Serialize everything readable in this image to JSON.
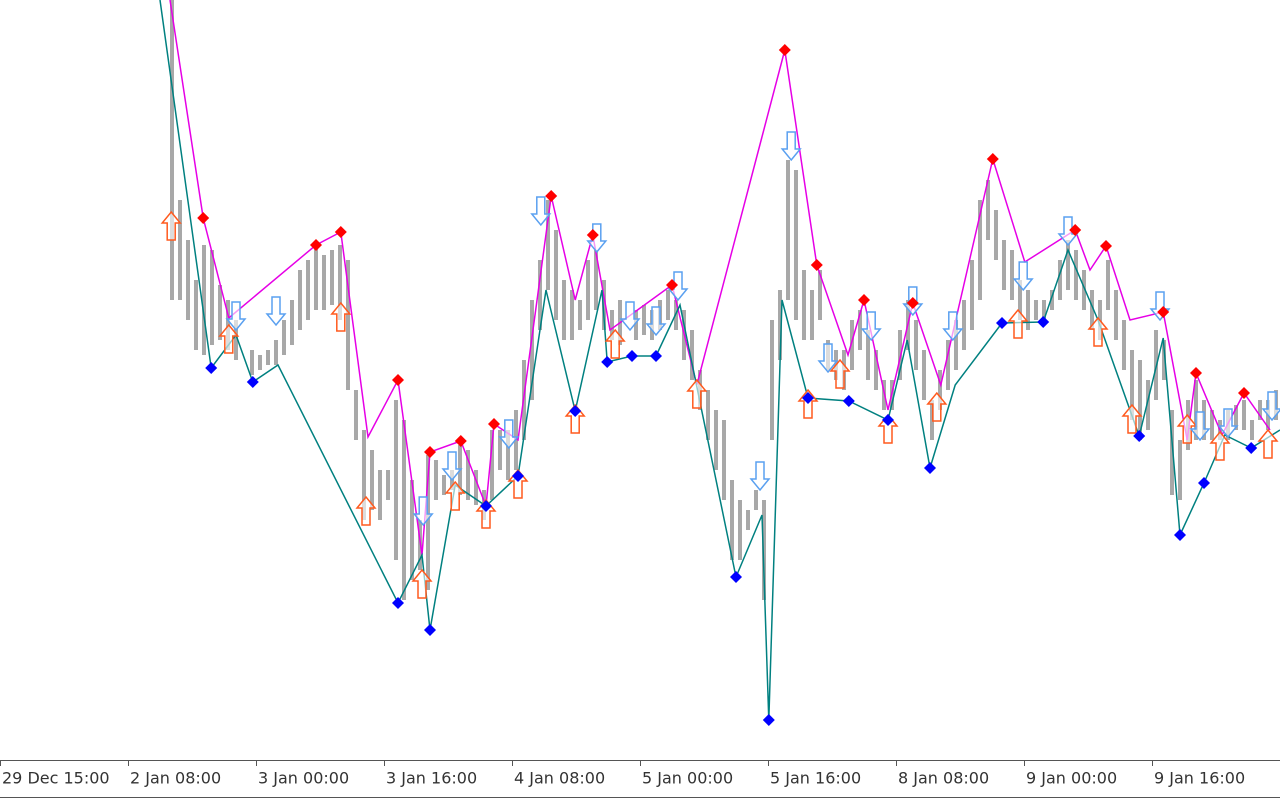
{
  "chart_data": {
    "type": "candlestick",
    "xlim": [
      0,
      160
    ],
    "ylim": [
      0,
      760
    ],
    "xticks": [
      {
        "value": 0,
        "label": "29 Dec 15:00"
      },
      {
        "value": 16,
        "label": "2 Jan 08:00"
      },
      {
        "value": 32,
        "label": "3 Jan 00:00"
      },
      {
        "value": 48,
        "label": "3 Jan 16:00"
      },
      {
        "value": 64,
        "label": "4 Jan 08:00"
      },
      {
        "value": 80,
        "label": "5 Jan 00:00"
      },
      {
        "value": 96,
        "label": "5 Jan 16:00"
      },
      {
        "value": 112,
        "label": "8 Jan 08:00"
      },
      {
        "value": 128,
        "label": "9 Jan 00:00"
      },
      {
        "value": 144,
        "label": "9 Jan 16:00"
      }
    ],
    "candles": {
      "color": "#a8a8a8",
      "x": [
        21,
        22,
        23,
        24,
        25,
        26,
        27,
        28,
        29,
        31,
        32,
        33,
        34,
        35,
        36,
        37,
        38,
        39,
        40,
        41,
        42,
        43,
        44,
        45,
        46,
        47,
        48,
        49,
        50,
        51,
        52,
        53,
        54,
        55,
        56,
        57,
        58,
        59,
        60,
        61,
        62,
        63,
        64,
        65,
        66,
        67,
        68,
        69,
        70,
        71,
        72,
        73,
        74,
        75,
        76,
        77,
        79,
        80,
        81,
        82,
        83,
        84,
        85,
        86,
        87,
        88,
        89,
        90,
        91,
        92,
        93,
        94,
        95,
        96,
        97,
        98,
        99,
        100,
        101,
        102,
        103,
        104,
        105,
        106,
        107,
        108,
        109,
        110,
        111,
        112,
        113,
        114,
        115,
        116,
        117,
        118,
        119,
        120,
        121,
        122,
        123,
        124,
        125,
        126,
        127,
        128,
        129,
        130,
        131,
        132,
        133,
        134,
        135,
        136,
        137,
        138,
        139,
        140,
        141,
        142,
        143,
        144,
        145,
        146,
        147,
        148,
        149,
        150,
        151,
        152,
        153,
        154,
        155,
        156,
        157,
        158,
        159
      ],
      "high": [
        760,
        560,
        520,
        480,
        515,
        510,
        475,
        460,
        440,
        410,
        405,
        410,
        420,
        440,
        460,
        490,
        500,
        515,
        505,
        510,
        515,
        500,
        370,
        330,
        310,
        290,
        290,
        360,
        340,
        280,
        240,
        305,
        300,
        285,
        290,
        315,
        310,
        290,
        270,
        330,
        330,
        330,
        350,
        400,
        460,
        500,
        560,
        530,
        480,
        470,
        460,
        500,
        510,
        480,
        450,
        460,
        450,
        455,
        450,
        460,
        470,
        460,
        450,
        430,
        390,
        370,
        350,
        340,
        280,
        260,
        250,
        270,
        260,
        440,
        470,
        600,
        590,
        490,
        470,
        490,
        420,
        410,
        410,
        440,
        450,
        430,
        410,
        380,
        380,
        430,
        460,
        440,
        410,
        360,
        390,
        420,
        440,
        460,
        500,
        560,
        580,
        550,
        520,
        510,
        480,
        470,
        460,
        460,
        470,
        500,
        520,
        510,
        490,
        470,
        460,
        500,
        470,
        440,
        410,
        400,
        380,
        430,
        420,
        350,
        320,
        360,
        380,
        360,
        350,
        340,
        350,
        355,
        360,
        340,
        360,
        360,
        370
      ],
      "low": [
        460,
        460,
        440,
        410,
        405,
        415,
        420,
        410,
        400,
        385,
        390,
        395,
        395,
        405,
        415,
        430,
        440,
        450,
        450,
        455,
        440,
        370,
        320,
        240,
        250,
        240,
        260,
        200,
        160,
        180,
        190,
        170,
        260,
        265,
        270,
        265,
        260,
        255,
        240,
        260,
        290,
        280,
        290,
        320,
        360,
        430,
        470,
        440,
        420,
        420,
        430,
        440,
        450,
        430,
        420,
        415,
        420,
        425,
        420,
        430,
        440,
        430,
        400,
        380,
        350,
        320,
        290,
        260,
        200,
        200,
        230,
        250,
        160,
        320,
        400,
        460,
        440,
        420,
        420,
        440,
        390,
        380,
        370,
        390,
        410,
        380,
        370,
        350,
        350,
        380,
        410,
        390,
        360,
        320,
        350,
        370,
        390,
        410,
        430,
        460,
        520,
        500,
        470,
        460,
        440,
        430,
        440,
        440,
        450,
        460,
        470,
        460,
        450,
        430,
        420,
        450,
        420,
        390,
        340,
        320,
        330,
        360,
        380,
        265,
        260,
        310,
        320,
        320,
        320,
        320,
        320,
        330,
        330,
        320,
        340,
        330,
        340
      ]
    },
    "series": [
      {
        "color": "#e600e6",
        "x": [
          21.25,
          25.4,
          28.6,
          39.5,
          42.6,
          46,
          49.75,
          52.75,
          53.75,
          57.6,
          60.75,
          61.75,
          64.75,
          68.9,
          71.9,
          74.1,
          76.25,
          84,
          87.1,
          98.1,
          102.1,
          106,
          108,
          111,
          114.1,
          117.6,
          124.1,
          128.1,
          134.4,
          136.25,
          138.25,
          141.25,
          145.4,
          148.4,
          149.5,
          152.75,
          155.5,
          158.75
        ],
        "values": [
          760,
          542,
          442,
          515,
          528,
          323,
          380,
          205,
          308,
          319,
          254,
          336,
          320,
          564,
          460,
          525,
          430,
          475,
          375,
          710,
          495,
          405,
          460,
          350,
          457,
          375,
          601,
          498,
          530,
          490,
          514,
          440,
          448,
          320,
          387,
          325,
          367,
          330
        ]
      },
      {
        "color": "#008080",
        "x": [
          20,
          26.4,
          29.5,
          31.6,
          34.75,
          49.75,
          52.75,
          53.75,
          56.9,
          60.75,
          64.75,
          68.25,
          71.9,
          75.25,
          75.9,
          79,
          82,
          85,
          92,
          95.25,
          96.1,
          97.75,
          101,
          106.1,
          111,
          113.4,
          116.25,
          119.4,
          125.25,
          130.4,
          133.5,
          137.25,
          142.4,
          145.4,
          147.5,
          150.5,
          153.1,
          156.4,
          160
        ],
        "values": [
          760,
          392,
          425,
          378,
          395,
          157,
          205,
          130,
          275,
          254,
          284,
          470,
          349,
          470,
          398,
          404,
          404,
          455,
          183,
          245,
          40,
          460,
          362,
          359,
          340,
          420,
          292,
          375,
          437,
          438,
          510,
          440,
          324,
          422,
          225,
          277,
          325,
          312,
          330
        ]
      }
    ],
    "markers": [
      {
        "color": "#ff0000",
        "x": [
          25.4,
          39.5,
          42.6,
          49.75,
          53.75,
          57.6,
          61.75,
          68.9,
          74.1,
          84,
          98.1,
          102.1,
          108,
          114.1,
          124.1,
          134.4,
          138.25,
          145.4,
          149.5,
          155.5
        ],
        "values": [
          542,
          515,
          528,
          380,
          308,
          319,
          336,
          564,
          525,
          475,
          710,
          495,
          460,
          457,
          601,
          530,
          514,
          448,
          387,
          367
        ]
      },
      {
        "color": "#0000ff",
        "x": [
          26.4,
          31.6,
          49.75,
          53.75,
          60.75,
          64.75,
          71.9,
          75.9,
          79,
          82,
          92,
          96.1,
          101,
          106.1,
          111,
          116.25,
          125.25,
          130.4,
          142.4,
          147.5,
          150.5,
          156.4
        ],
        "values": [
          392,
          378,
          157,
          130,
          254,
          284,
          349,
          398,
          404,
          404,
          183,
          40,
          362,
          359,
          340,
          292,
          437,
          438,
          324,
          225,
          277,
          312
        ]
      }
    ],
    "signals": [
      {
        "direction": "up",
        "color": "#ff5a1e",
        "x": [
          21.4,
          28.6,
          42.6,
          45.75,
          52.75,
          56.9,
          60.75,
          64.75,
          71.9,
          76.9,
          87.1,
          101,
          105,
          111,
          117.1,
          127.25,
          137.25,
          141.5,
          148.4,
          152.5,
          158.5
        ],
        "values": [
          548,
          435,
          457,
          263,
          190,
          278,
          260,
          290,
          355,
          430,
          380,
          370,
          400,
          345,
          367,
          450,
          442,
          355,
          345,
          328,
          330
        ]
      },
      {
        "direction": "down",
        "color": "#5aa0f0",
        "x": [
          29.5,
          34.5,
          52.9,
          56.5,
          63.6,
          67.6,
          74.6,
          78.75,
          82,
          84.75,
          95,
          98.9,
          103.5,
          108.9,
          114.1,
          119.1,
          127.9,
          133.5,
          145,
          150,
          153.5,
          159
        ],
        "values": [
          430,
          435,
          235,
          280,
          312,
          535,
          508,
          430,
          425,
          460,
          270,
          600,
          388,
          420,
          445,
          420,
          470,
          515,
          440,
          320,
          323,
          340
        ]
      }
    ]
  }
}
